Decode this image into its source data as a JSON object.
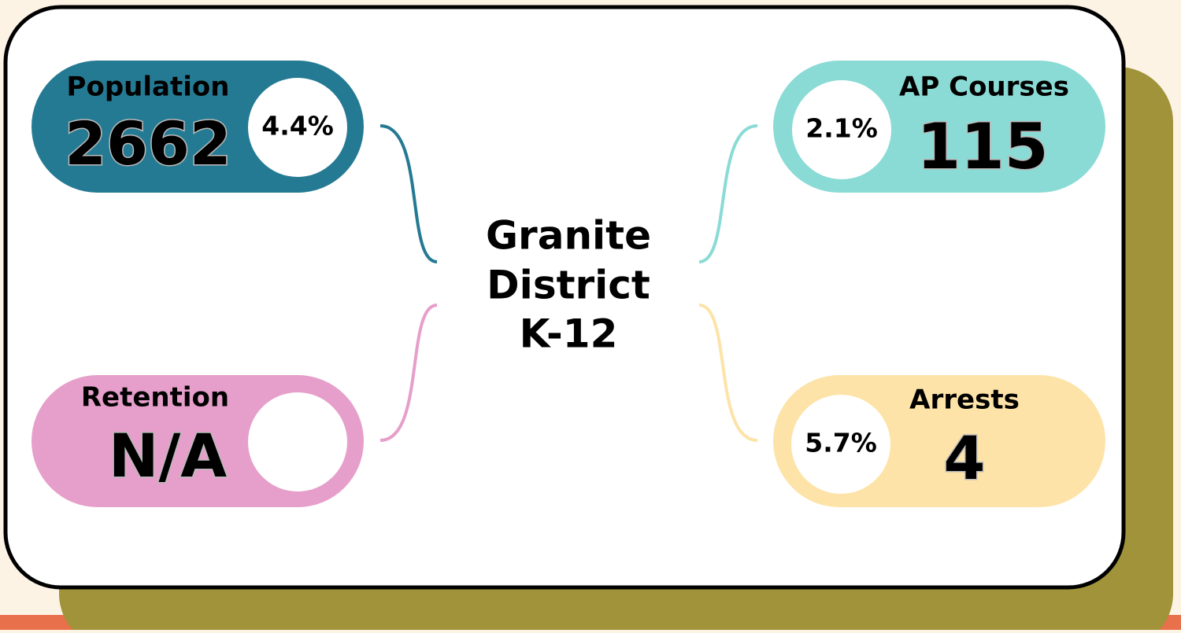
{
  "title": {
    "lines": [
      "Granite",
      "District",
      "K-12"
    ]
  },
  "cards": [
    {
      "label": "Population",
      "value": 2662,
      "percent": "4.4%"
    },
    {
      "label": "AP Courses",
      "value": 115,
      "percent": "2.1%"
    },
    {
      "label": "Retention",
      "value": "N/A"
    },
    {
      "label": "Arrests",
      "value": 4,
      "percent": "5.7%"
    }
  ]
}
